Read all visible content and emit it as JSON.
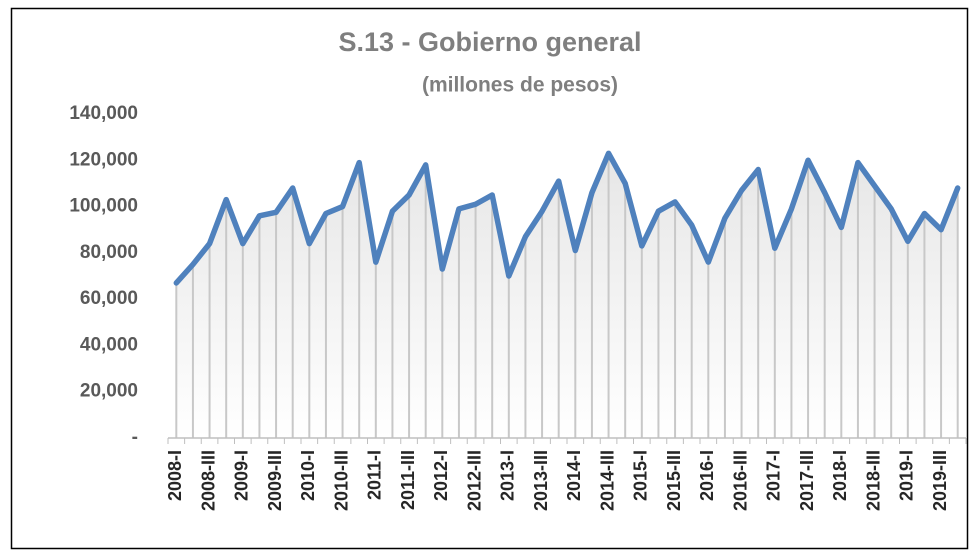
{
  "chart_data": {
    "type": "line",
    "title": "S.13 - Gobierno general",
    "subtitle": "(millones de pesos)",
    "categories": [
      "2008-I",
      null,
      "2008-III",
      null,
      "2009-I",
      null,
      "2009-III",
      null,
      "2010-I",
      null,
      "2010-III",
      null,
      "2011-I",
      null,
      "2011-III",
      null,
      "2012-I",
      null,
      "2012-III",
      null,
      "2013-I",
      null,
      "2013-III",
      null,
      "2014-I",
      null,
      "2014-III",
      null,
      "2015-I",
      null,
      "2015-III",
      null,
      "2016-I",
      null,
      "2016-III",
      null,
      "2017-I",
      null,
      "2017-III",
      null,
      "2018-I",
      null,
      "2018-III",
      null,
      "2019-I",
      null,
      "2019-III",
      null
    ],
    "values": [
      67000,
      75000,
      84000,
      103000,
      84000,
      96000,
      97500,
      108000,
      84000,
      97000,
      100000,
      119000,
      76000,
      98000,
      105000,
      118000,
      73000,
      99000,
      101000,
      105000,
      70000,
      87000,
      98000,
      111000,
      81000,
      106000,
      123000,
      110000,
      83000,
      98000,
      102000,
      92000,
      76000,
      95000,
      107000,
      116000,
      82000,
      99000,
      120000,
      106000,
      91000,
      119000,
      109000,
      99000,
      85000,
      97000,
      90000,
      108000
    ],
    "color": "#4f81bd",
    "ylim": [
      0,
      140000
    ],
    "yticks": [
      {
        "value": 0,
        "label": "-"
      },
      {
        "value": 20000,
        "label": "20,000"
      },
      {
        "value": 40000,
        "label": "40,000"
      },
      {
        "value": 60000,
        "label": "60,000"
      },
      {
        "value": 80000,
        "label": "80,000"
      },
      {
        "value": 100000,
        "label": "100,000"
      },
      {
        "value": 120000,
        "label": "120,000"
      },
      {
        "value": 140000,
        "label": "140,000"
      }
    ],
    "grid": false
  }
}
